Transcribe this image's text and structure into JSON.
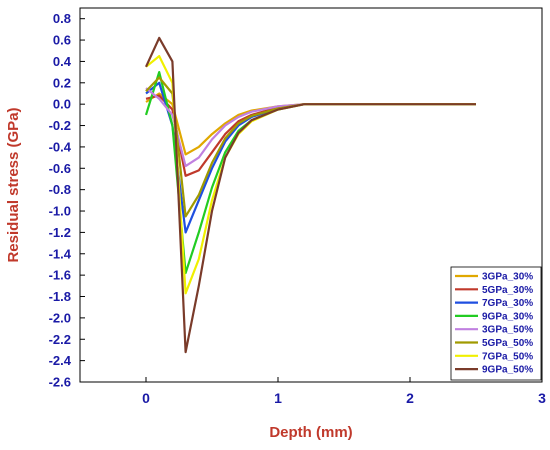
{
  "chart_data": {
    "type": "line",
    "title": "",
    "xlabel": "Depth (mm)",
    "ylabel": "Residual stress (GPa)",
    "xlim": [
      -0.5,
      3
    ],
    "ylim": [
      -2.6,
      0.9
    ],
    "xticks": [
      0,
      1,
      2,
      3
    ],
    "xtick_labels": [
      "0",
      "1",
      "2",
      "3"
    ],
    "yticks": [
      0.8,
      0.6,
      0.4,
      0.2,
      0.0,
      -0.2,
      -0.4,
      -0.6,
      -0.8,
      -1.0,
      -1.2,
      -1.4,
      -1.6,
      -1.8,
      -2.0,
      -2.2,
      -2.4,
      -2.6
    ],
    "ytick_labels": [
      "0.8",
      "0.6",
      "0.4",
      "0.2",
      "0.0",
      "-0.2",
      "-0.4",
      "-0.6",
      "-0.8",
      "-1.0",
      "-1.2",
      "-1.4",
      "-1.6",
      "-1.8",
      "-2.0",
      "-2.2",
      "-2.4",
      "-2.6"
    ],
    "grid": false,
    "legend_position": "bottom-right",
    "series": [
      {
        "name": "3GPa_30%",
        "color": "#e0a800",
        "x": [
          0,
          0.1,
          0.2,
          0.3,
          0.4,
          0.5,
          0.6,
          0.7,
          0.8,
          1.0,
          1.2,
          1.5,
          2.0,
          2.5
        ],
        "y": [
          0.02,
          0.1,
          0.0,
          -0.47,
          -0.4,
          -0.28,
          -0.18,
          -0.1,
          -0.06,
          -0.02,
          0.0,
          0.0,
          0.0,
          0.0
        ]
      },
      {
        "name": "5GPa_30%",
        "color": "#c0392b",
        "x": [
          0,
          0.1,
          0.2,
          0.3,
          0.4,
          0.5,
          0.6,
          0.7,
          0.8,
          1.0,
          1.2,
          1.5,
          2.0,
          2.5
        ],
        "y": [
          0.05,
          0.08,
          -0.05,
          -0.67,
          -0.62,
          -0.45,
          -0.28,
          -0.16,
          -0.1,
          -0.03,
          0.0,
          0.0,
          0.0,
          0.0
        ]
      },
      {
        "name": "7GPa_30%",
        "color": "#1f4fe0",
        "x": [
          0,
          0.1,
          0.2,
          0.3,
          0.4,
          0.5,
          0.6,
          0.7,
          0.8,
          1.0,
          1.2,
          1.5,
          2.0,
          2.5
        ],
        "y": [
          0.1,
          0.2,
          -0.2,
          -1.2,
          -0.9,
          -0.6,
          -0.35,
          -0.2,
          -0.12,
          -0.04,
          0.0,
          0.0,
          0.0,
          0.0
        ]
      },
      {
        "name": "9GPa_30%",
        "color": "#22cc22",
        "x": [
          0,
          0.1,
          0.2,
          0.3,
          0.4,
          0.5,
          0.6,
          0.7,
          0.8,
          1.0,
          1.2,
          1.5,
          2.0,
          2.5
        ],
        "y": [
          -0.1,
          0.3,
          -0.2,
          -1.58,
          -1.2,
          -0.78,
          -0.45,
          -0.25,
          -0.15,
          -0.05,
          0.0,
          0.0,
          0.0,
          0.0
        ]
      },
      {
        "name": "3GPa_50%",
        "color": "#c080e0",
        "x": [
          0,
          0.1,
          0.2,
          0.3,
          0.4,
          0.5,
          0.6,
          0.7,
          0.8,
          1.0,
          1.2,
          1.5,
          2.0,
          2.5
        ],
        "y": [
          0.15,
          0.05,
          -0.1,
          -0.58,
          -0.5,
          -0.33,
          -0.2,
          -0.12,
          -0.07,
          -0.02,
          0.0,
          0.0,
          0.0,
          0.0
        ]
      },
      {
        "name": "5GPa_50%",
        "color": "#a09a00",
        "x": [
          0,
          0.1,
          0.2,
          0.3,
          0.4,
          0.5,
          0.6,
          0.7,
          0.8,
          1.0,
          1.2,
          1.5,
          2.0,
          2.5
        ],
        "y": [
          0.12,
          0.25,
          0.1,
          -1.05,
          -0.85,
          -0.55,
          -0.32,
          -0.18,
          -0.11,
          -0.04,
          0.0,
          0.0,
          0.0,
          0.0
        ]
      },
      {
        "name": "7GPa_50%",
        "color": "#f0f000",
        "x": [
          0,
          0.1,
          0.2,
          0.3,
          0.4,
          0.5,
          0.6,
          0.7,
          0.8,
          1.0,
          1.2,
          1.5,
          2.0,
          2.5
        ],
        "y": [
          0.35,
          0.45,
          0.2,
          -1.77,
          -1.45,
          -0.9,
          -0.5,
          -0.28,
          -0.16,
          -0.05,
          0.0,
          0.0,
          0.0,
          0.0
        ]
      },
      {
        "name": "9GPa_50%",
        "color": "#7a3b2a",
        "x": [
          0,
          0.1,
          0.2,
          0.3,
          0.4,
          0.5,
          0.6,
          0.7,
          0.8,
          1.0,
          1.2,
          1.5,
          2.0,
          2.5
        ],
        "y": [
          0.35,
          0.62,
          0.4,
          -2.32,
          -1.7,
          -1.0,
          -0.5,
          -0.27,
          -0.15,
          -0.05,
          0.0,
          0.0,
          0.0,
          0.0
        ]
      }
    ]
  }
}
